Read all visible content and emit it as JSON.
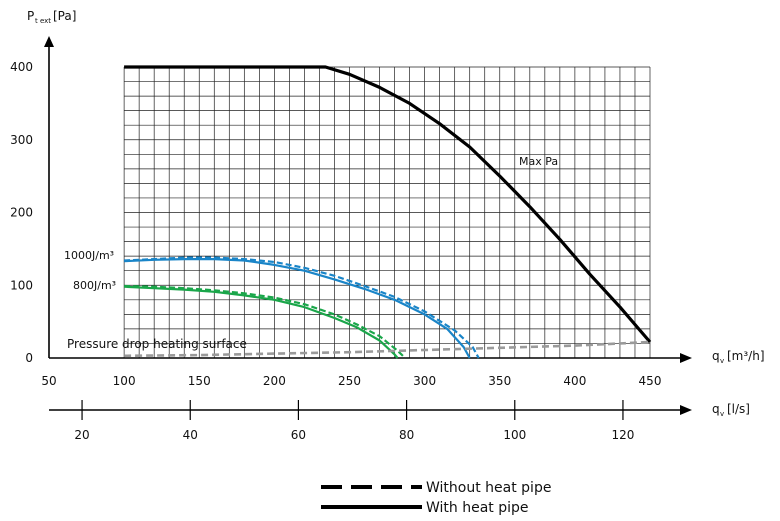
{
  "chart_data": {
    "type": "line",
    "y_axis": {
      "label_main": "P",
      "label_sub": "t ext",
      "label_unit": "[Pa]",
      "ylim": [
        0,
        400
      ],
      "ticks": [
        0,
        100,
        200,
        300,
        400
      ]
    },
    "x_axis": {
      "label_main": "q",
      "label_sub": "v",
      "label_unit": "[m³/h]",
      "xlim": [
        50,
        450
      ],
      "ticks": [
        50,
        100,
        150,
        200,
        250,
        300,
        350,
        400,
        450
      ]
    },
    "x_axis_secondary": {
      "label_main": "q",
      "label_sub": "v",
      "label_unit": "[l/s]",
      "ticks": [
        20,
        40,
        60,
        80,
        100,
        120
      ]
    },
    "grid": true,
    "series": [
      {
        "name": "Max Pa",
        "color": "#000000",
        "style": "solid",
        "points": [
          [
            100,
            400
          ],
          [
            234,
            400
          ],
          [
            250,
            390
          ],
          [
            270,
            372
          ],
          [
            290,
            350
          ],
          [
            310,
            322
          ],
          [
            330,
            290
          ],
          [
            350,
            250
          ],
          [
            370,
            208
          ],
          [
            390,
            163
          ],
          [
            410,
            115
          ],
          [
            430,
            70
          ],
          [
            450,
            22
          ]
        ]
      },
      {
        "name": "1000J/m³",
        "color": "#1a85c8",
        "style": "solid",
        "points": [
          [
            100,
            133
          ],
          [
            120,
            135
          ],
          [
            140,
            136
          ],
          [
            160,
            136
          ],
          [
            180,
            134
          ],
          [
            200,
            128
          ],
          [
            220,
            120
          ],
          [
            240,
            108
          ],
          [
            260,
            95
          ],
          [
            280,
            80
          ],
          [
            300,
            60
          ],
          [
            315,
            40
          ],
          [
            326,
            15
          ],
          [
            330,
            0
          ]
        ]
      },
      {
        "name": "1000J/m³ (dashed)",
        "color": "#1a85c8",
        "style": "dashed",
        "points": [
          [
            100,
            134
          ],
          [
            120,
            136
          ],
          [
            140,
            138
          ],
          [
            160,
            138
          ],
          [
            180,
            136
          ],
          [
            200,
            132
          ],
          [
            220,
            124
          ],
          [
            240,
            113
          ],
          [
            260,
            99
          ],
          [
            280,
            84
          ],
          [
            300,
            64
          ],
          [
            320,
            38
          ],
          [
            332,
            15
          ],
          [
            336,
            0
          ]
        ]
      },
      {
        "name": "800J/m³",
        "color": "#1aa64a",
        "style": "solid",
        "points": [
          [
            100,
            98
          ],
          [
            120,
            96
          ],
          [
            140,
            94
          ],
          [
            160,
            91
          ],
          [
            180,
            86
          ],
          [
            200,
            80
          ],
          [
            220,
            70
          ],
          [
            240,
            55
          ],
          [
            255,
            42
          ],
          [
            270,
            24
          ],
          [
            280,
            5
          ],
          [
            282,
            0
          ]
        ]
      },
      {
        "name": "800J/m³ (dashed)",
        "color": "#1aa64a",
        "style": "dashed",
        "points": [
          [
            100,
            99
          ],
          [
            120,
            98
          ],
          [
            140,
            96
          ],
          [
            160,
            93
          ],
          [
            180,
            89
          ],
          [
            200,
            83
          ],
          [
            220,
            74
          ],
          [
            240,
            60
          ],
          [
            255,
            46
          ],
          [
            270,
            30
          ],
          [
            282,
            10
          ],
          [
            287,
            0
          ]
        ]
      },
      {
        "name": "Pressure drop heating surface",
        "color": "#9a9a9a",
        "style": "dashed",
        "points": [
          [
            100,
            3
          ],
          [
            150,
            4
          ],
          [
            200,
            6
          ],
          [
            250,
            8
          ],
          [
            300,
            11
          ],
          [
            350,
            14
          ],
          [
            400,
            17
          ],
          [
            450,
            22
          ]
        ]
      }
    ],
    "annotations": {
      "max_pa": "Max Pa",
      "j1000": "1000J/m³",
      "j800": "800J/m³",
      "pressure_drop": "Pressure drop heating surface"
    },
    "legend": {
      "placement": "bottom-center",
      "entries": [
        {
          "label": "Without heat pipe",
          "style": "dashed",
          "color": "#000000"
        },
        {
          "label": "With heat pipe",
          "style": "solid",
          "color": "#000000"
        }
      ]
    }
  }
}
